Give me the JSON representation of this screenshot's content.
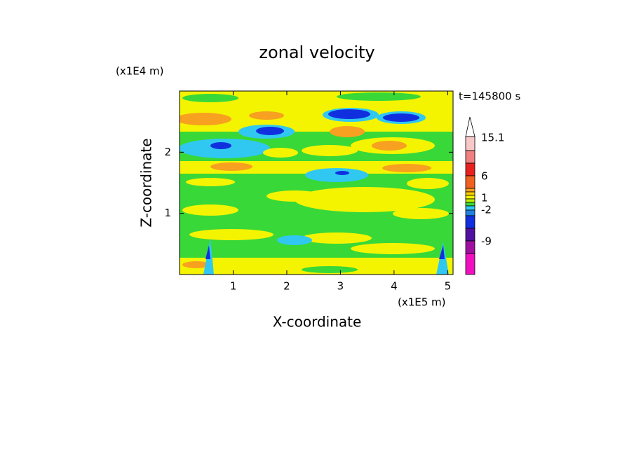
{
  "chart_data": {
    "type": "contour",
    "title": "zonal velocity",
    "x_label": "X-coordinate",
    "y_label": "Z-coordinate",
    "x_unit": "(x1E5 m)",
    "y_unit": "(x1E4 m)",
    "time_label": "t=145800 s",
    "xlim": [
      0,
      5.1
    ],
    "xticks": [
      1,
      2,
      3,
      4,
      5
    ],
    "ylim": [
      0,
      3
    ],
    "yticks": [
      1,
      2
    ],
    "colorbar_labels": [
      15.1,
      6,
      1,
      -2,
      -9
    ]
  }
}
